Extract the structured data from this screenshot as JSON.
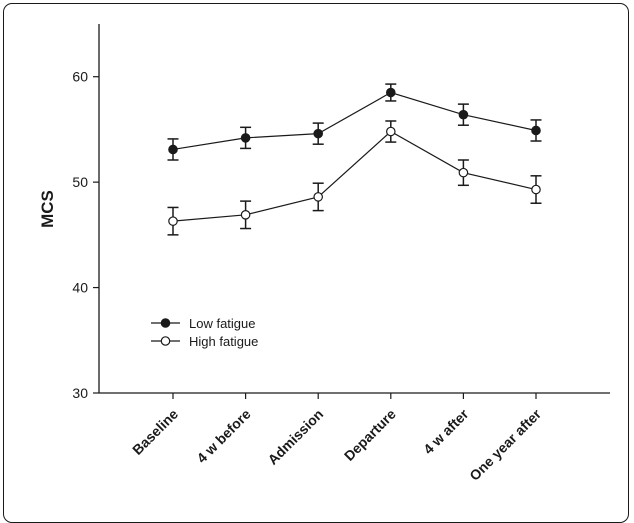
{
  "chart_data": {
    "type": "line",
    "title": "",
    "xlabel": "",
    "ylabel": "MCS",
    "ylim": [
      30,
      65
    ],
    "yticks": [
      30,
      40,
      50,
      60
    ],
    "categories": [
      "Baseline",
      "4 w before",
      "Admission",
      "Departure",
      "4 w after",
      "One year after"
    ],
    "series": [
      {
        "name": "Low fatigue",
        "marker": "filled-circle",
        "values": [
          53.1,
          54.2,
          54.6,
          58.5,
          56.4,
          54.9
        ],
        "error": [
          1.0,
          1.0,
          1.0,
          0.8,
          1.0,
          1.0
        ]
      },
      {
        "name": "High fatigue",
        "marker": "open-circle",
        "values": [
          46.3,
          46.9,
          48.6,
          54.8,
          50.9,
          49.3
        ],
        "error": [
          1.3,
          1.3,
          1.3,
          1.0,
          1.2,
          1.3
        ]
      }
    ],
    "legend_position": "lower-left",
    "grid": false
  }
}
